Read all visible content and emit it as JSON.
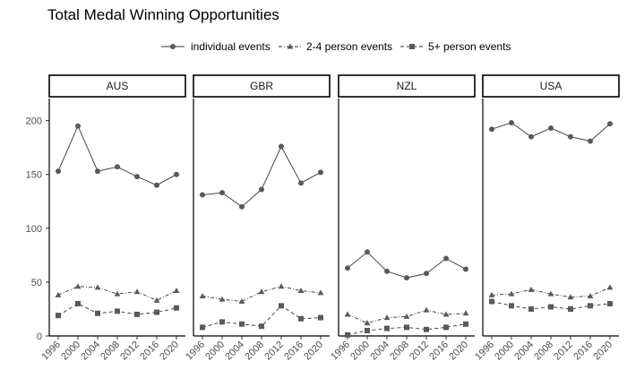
{
  "chart_data": {
    "type": "line",
    "title": "Total Medal Winning Opportunities",
    "xlabel": "",
    "ylabel": "",
    "ylim": [
      0,
      215
    ],
    "yticks": [
      0,
      50,
      100,
      150,
      200
    ],
    "x": [
      "1996",
      "2000",
      "2004",
      "2008",
      "2012",
      "2016",
      "2020"
    ],
    "legend": [
      {
        "name": "individual events",
        "marker": "circle",
        "line": "solid"
      },
      {
        "name": "2-4 person events",
        "marker": "triangle",
        "line": "dotdash"
      },
      {
        "name": "5+ person events",
        "marker": "square",
        "line": "dashed"
      }
    ],
    "panels": [
      {
        "label": "AUS",
        "series": [
          {
            "name": "individual events",
            "values": [
              153,
              195,
              153,
              157,
              148,
              140,
              150
            ]
          },
          {
            "name": "2-4 person events",
            "values": [
              38,
              46,
              45,
              39,
              41,
              33,
              42
            ]
          },
          {
            "name": "5+ person events",
            "values": [
              19,
              30,
              21,
              23,
              20,
              22,
              26
            ]
          }
        ]
      },
      {
        "label": "GBR",
        "series": [
          {
            "name": "individual events",
            "values": [
              131,
              133,
              120,
              136,
              176,
              142,
              152
            ]
          },
          {
            "name": "2-4 person events",
            "values": [
              37,
              34,
              32,
              41,
              46,
              42,
              40
            ]
          },
          {
            "name": "5+ person events",
            "values": [
              8,
              13,
              11,
              9,
              28,
              16,
              17
            ]
          }
        ]
      },
      {
        "label": "NZL",
        "series": [
          {
            "name": "individual events",
            "values": [
              63,
              78,
              60,
              54,
              58,
              72,
              62
            ]
          },
          {
            "name": "2-4 person events",
            "values": [
              20,
              12,
              17,
              18,
              24,
              20,
              21
            ]
          },
          {
            "name": "5+ person events",
            "values": [
              1,
              5,
              7,
              8,
              6,
              8,
              11
            ]
          }
        ]
      },
      {
        "label": "USA",
        "series": [
          {
            "name": "individual events",
            "values": [
              192,
              198,
              185,
              193,
              185,
              181,
              197
            ]
          },
          {
            "name": "2-4 person events",
            "values": [
              38,
              39,
              43,
              39,
              36,
              37,
              45
            ]
          },
          {
            "name": "5+ person events",
            "values": [
              32,
              28,
              25,
              27,
              25,
              28,
              30
            ]
          }
        ]
      }
    ]
  }
}
